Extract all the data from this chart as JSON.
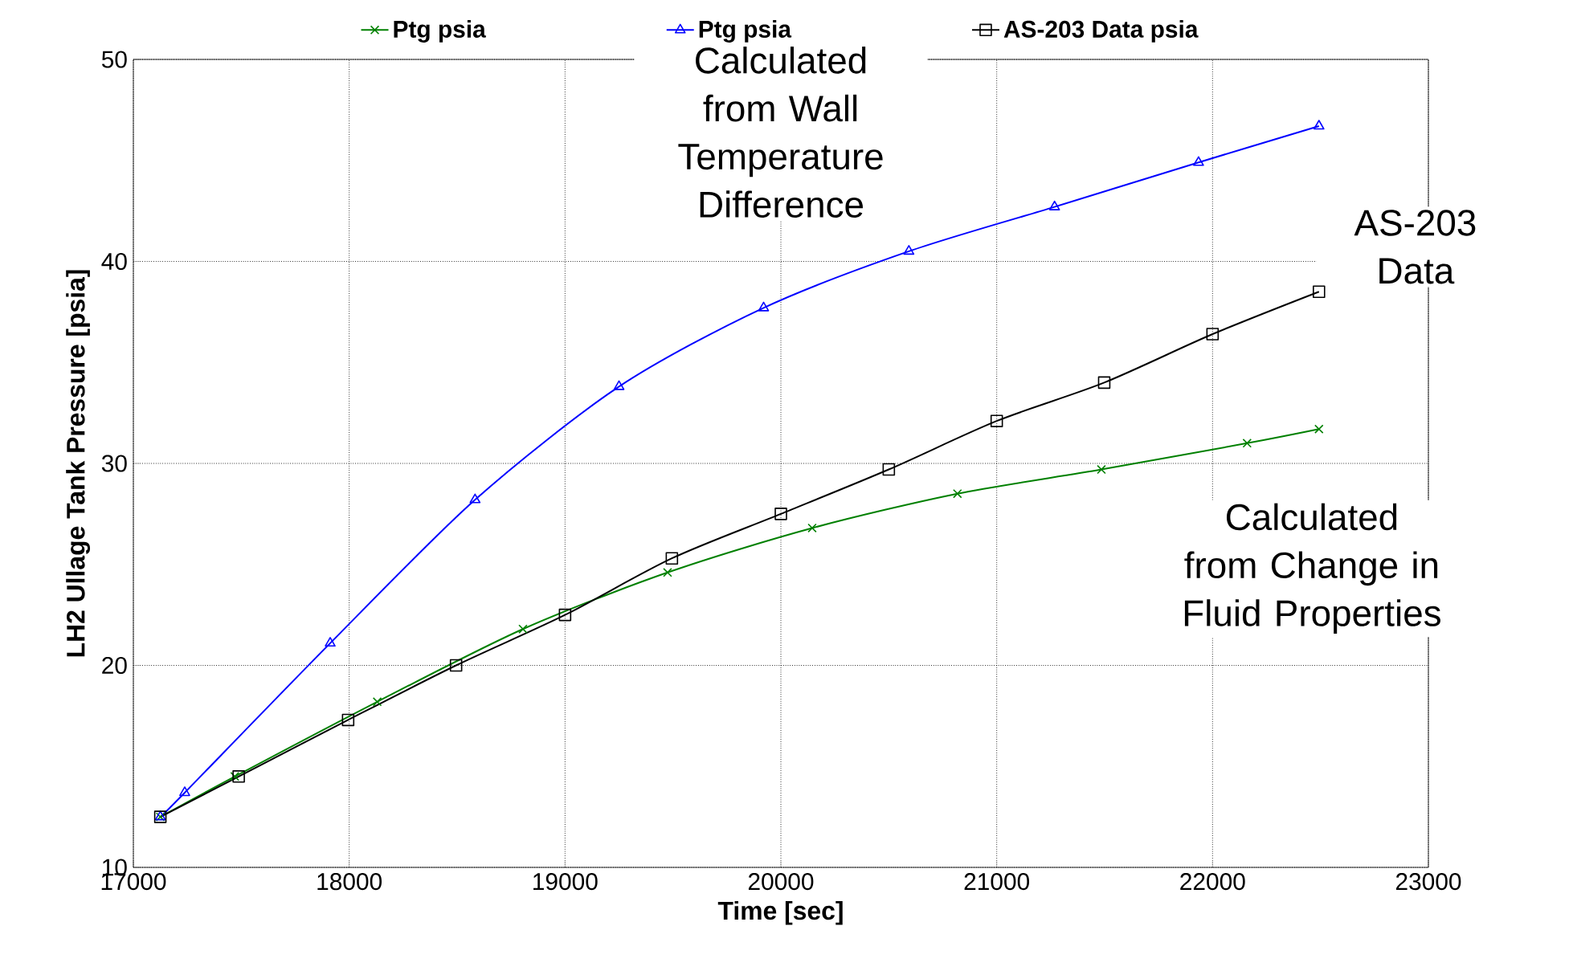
{
  "chart_data": {
    "type": "line",
    "xlabel": "Time [sec]",
    "ylabel": "LH2 Ullage Tank Pressure [psia]",
    "xlim": [
      17000,
      23000
    ],
    "xticks": [
      17000,
      18000,
      19000,
      20000,
      21000,
      22000,
      23000
    ],
    "ylim": [
      10,
      50
    ],
    "yticks": [
      10,
      20,
      30,
      40,
      50
    ],
    "grid": true,
    "legend": "top",
    "series": [
      {
        "name": "Ptg  psia",
        "color": "#008000",
        "marker": "cross",
        "x": [
          17125,
          17470,
          18130,
          18805,
          19475,
          20145,
          20818,
          21485,
          22160,
          22493
        ],
        "values": [
          12.5,
          14.5,
          18.2,
          21.8,
          24.6,
          26.8,
          28.5,
          29.7,
          31.0,
          31.7
        ]
      },
      {
        "name": "Ptg  psia",
        "color": "#0000ff",
        "marker": "triangle",
        "x": [
          17125,
          17238,
          17912,
          18583,
          19250,
          19920,
          20593,
          21268,
          21935,
          22493
        ],
        "values": [
          12.5,
          13.7,
          21.1,
          28.2,
          33.8,
          37.7,
          40.5,
          42.7,
          44.9,
          46.7
        ]
      },
      {
        "name": "AS-203 Data  psia",
        "color": "#000000",
        "marker": "square",
        "x": [
          17125,
          17488,
          17995,
          18495,
          19000,
          19495,
          20000,
          20500,
          21000,
          21498,
          22000,
          22493
        ],
        "values": [
          12.5,
          14.5,
          17.3,
          20.0,
          22.5,
          25.3,
          27.5,
          29.7,
          32.1,
          34.0,
          36.4,
          38.5
        ]
      }
    ],
    "annotations": [
      "Calculated from Wall Temperature Difference",
      "AS-203 Data",
      "Calculated from Change in Fluid Properties"
    ]
  }
}
